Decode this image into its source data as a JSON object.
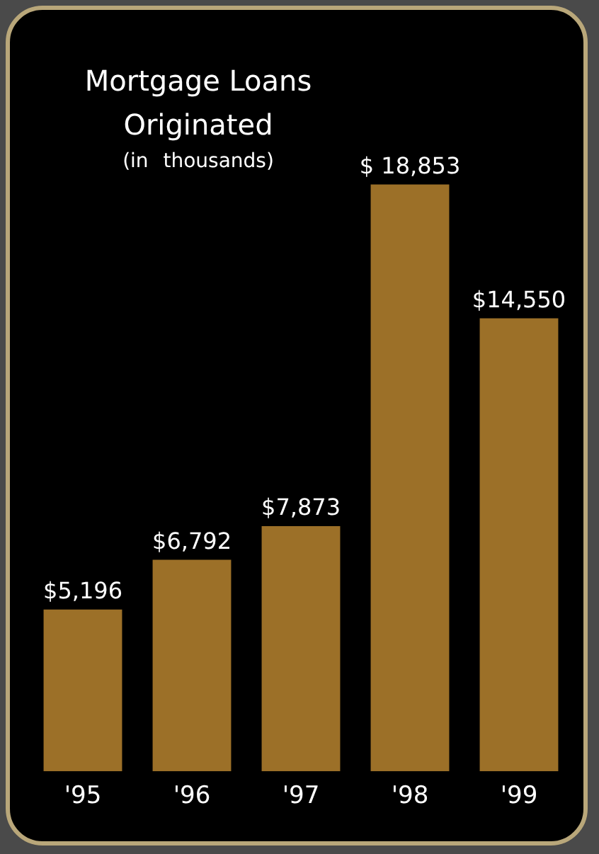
{
  "chart_data": {
    "type": "bar",
    "title": "Mortgage Loans Originated",
    "subtitle": "(in thousands)",
    "categories": [
      "'95",
      "'96",
      "'97",
      "'98",
      "'99"
    ],
    "values": [
      5196,
      6792,
      7873,
      18853,
      14550
    ],
    "value_labels": [
      "$5,196",
      "$6,792",
      "$7,873",
      "$ 18,853",
      "$14,550"
    ],
    "color": "#9c7028"
  }
}
